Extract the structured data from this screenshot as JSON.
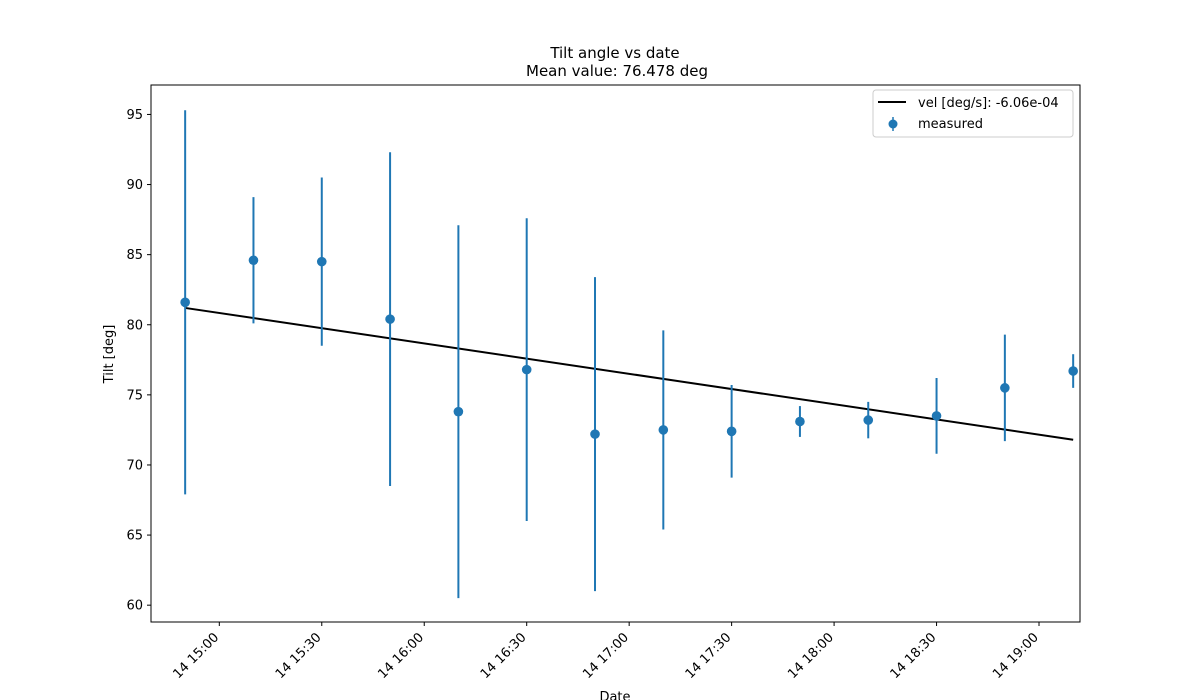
{
  "chart_data": {
    "type": "scatter",
    "title": "Tilt angle vs date",
    "subtitle": "Mean value: 76.478 deg",
    "xlabel": "Date",
    "ylabel": "Tilt [deg]",
    "x_ticks": [
      "14 15:00",
      "14 15:30",
      "14 16:00",
      "14 16:30",
      "14 17:00",
      "14 17:30",
      "14 18:00",
      "14 18:30",
      "14 19:00"
    ],
    "xlim": [
      "2014-01-14T14:40",
      "2014-01-14T19:12"
    ],
    "y_ticks": [
      60,
      65,
      70,
      75,
      80,
      85,
      90,
      95
    ],
    "ylim": [
      58.8,
      97.1
    ],
    "grid": false,
    "legend_position": "upper-right",
    "series": [
      {
        "name": "measured",
        "kind": "errorbar",
        "color": "#1f77b4",
        "points": [
          {
            "x": "2014-01-14T14:50",
            "y": 81.6,
            "err": 13.7
          },
          {
            "x": "2014-01-14T15:10",
            "y": 84.6,
            "err": 4.5
          },
          {
            "x": "2014-01-14T15:30",
            "y": 84.5,
            "err": 6.0
          },
          {
            "x": "2014-01-14T15:50",
            "y": 80.4,
            "err": 11.9
          },
          {
            "x": "2014-01-14T16:10",
            "y": 73.8,
            "err": 13.3
          },
          {
            "x": "2014-01-14T16:30",
            "y": 76.8,
            "err": 10.8
          },
          {
            "x": "2014-01-14T16:50",
            "y": 72.2,
            "err": 11.2
          },
          {
            "x": "2014-01-14T17:10",
            "y": 72.5,
            "err": 7.1
          },
          {
            "x": "2014-01-14T17:30",
            "y": 72.4,
            "err": 3.3
          },
          {
            "x": "2014-01-14T17:50",
            "y": 73.1,
            "err": 1.1
          },
          {
            "x": "2014-01-14T18:10",
            "y": 73.2,
            "err": 1.3
          },
          {
            "x": "2014-01-14T18:30",
            "y": 73.5,
            "err": 2.7
          },
          {
            "x": "2014-01-14T18:50",
            "y": 75.5,
            "err": 3.8
          },
          {
            "x": "2014-01-14T19:10",
            "y": 76.7,
            "err": 1.2
          }
        ]
      },
      {
        "name": "vel [deg/s]: -6.06e-04",
        "kind": "line",
        "color": "#000000",
        "points": [
          {
            "x": "2014-01-14T14:50",
            "y": 81.2
          },
          {
            "x": "2014-01-14T19:10",
            "y": 71.8
          }
        ]
      }
    ]
  }
}
